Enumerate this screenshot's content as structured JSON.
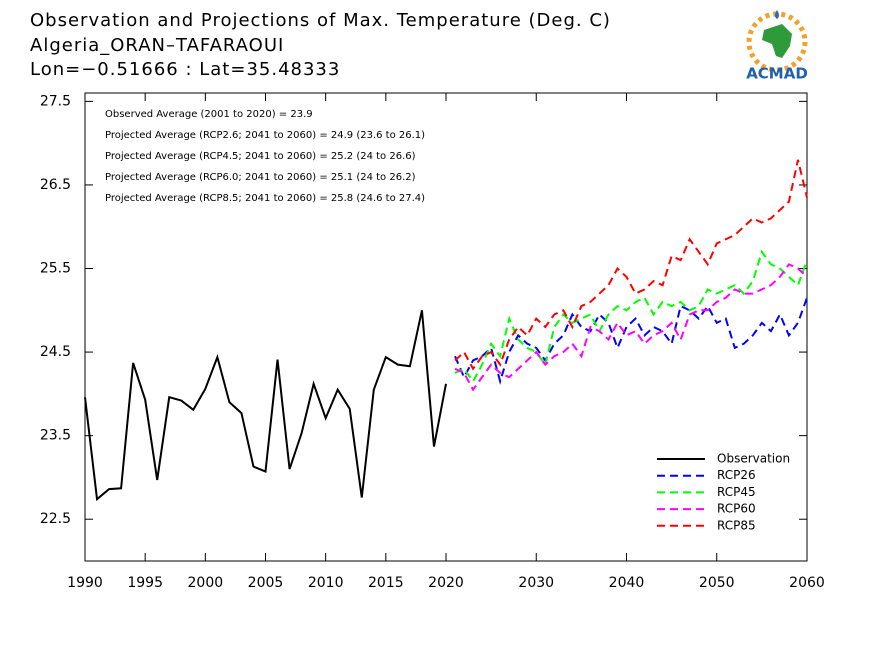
{
  "chart_data": {
    "type": "line",
    "title": "Observation and Projections of Max. Temperature (Deg. C)",
    "subtitle": "Algeria_ORAN–TAFARAOUI",
    "location": "Lon=−0.51666 : Lat=35.48333",
    "logo_text": "ACMAD",
    "annotations": [
      "Observed Average (2001 to 2020) = 23.9",
      "Projected Average (RCP2.6; 2041 to 2060) = 24.9 (23.6 to 26.1)",
      "Projected Average (RCP4.5; 2041 to 2060) = 25.2 (24 to 26.6)",
      "Projected Average (RCP6.0; 2041 to 2060) = 25.1 (24 to 26.2)",
      "Projected Average (RCP8.5; 2041 to 2060) = 25.8 (24.6 to 27.4)"
    ],
    "xlim": [
      1990,
      2020,
      2060
    ],
    "xticks": [
      1990,
      1995,
      2000,
      2005,
      2010,
      2015,
      2020,
      2030,
      2040,
      2050,
      2060
    ],
    "ylim": [
      22,
      27.6
    ],
    "yticks": [
      22.5,
      23.5,
      24.5,
      25.5,
      26.5,
      27.5
    ],
    "series": [
      {
        "name": "Observation",
        "color": "#000000",
        "style": "solid",
        "x": [
          1990,
          1991,
          1992,
          1993,
          1994,
          1995,
          1996,
          1997,
          1998,
          1999,
          2000,
          2001,
          2002,
          2003,
          2004,
          2005,
          2006,
          2007,
          2008,
          2009,
          2010,
          2011,
          2012,
          2013,
          2014,
          2015,
          2016,
          2017,
          2018,
          2019,
          2020
        ],
        "values": [
          23.96,
          22.74,
          22.86,
          22.87,
          24.37,
          23.93,
          22.97,
          23.96,
          23.92,
          23.81,
          24.06,
          24.44,
          23.9,
          23.77,
          23.13,
          23.07,
          24.41,
          23.1,
          23.53,
          24.12,
          23.71,
          24.05,
          23.82,
          22.76,
          24.05,
          24.44,
          24.35,
          24.33,
          25.0,
          23.37,
          24.12
        ]
      },
      {
        "name": "RCP26",
        "color": "#0000ff",
        "style": "dashed",
        "x": [
          2021,
          2022,
          2023,
          2024,
          2025,
          2026,
          2027,
          2028,
          2029,
          2030,
          2031,
          2032,
          2033,
          2034,
          2035,
          2036,
          2037,
          2038,
          2039,
          2040,
          2041,
          2042,
          2043,
          2044,
          2045,
          2046,
          2047,
          2048,
          2049,
          2050,
          2051,
          2052,
          2053,
          2054,
          2055,
          2056,
          2057,
          2058,
          2059,
          2060
        ],
        "values": [
          24.45,
          24.2,
          24.4,
          24.45,
          24.55,
          24.15,
          24.5,
          24.7,
          24.6,
          24.55,
          24.4,
          24.6,
          24.7,
          24.95,
          24.8,
          24.75,
          24.95,
          24.85,
          24.55,
          24.8,
          24.9,
          24.7,
          24.8,
          24.75,
          24.6,
          25.05,
          25.0,
          24.9,
          25.05,
          24.85,
          24.9,
          24.55,
          24.6,
          24.7,
          24.85,
          24.75,
          24.95,
          24.7,
          24.85,
          25.15
        ]
      },
      {
        "name": "RCP45",
        "color": "#00ff00",
        "style": "dashed",
        "x": [
          2021,
          2022,
          2023,
          2024,
          2025,
          2026,
          2027,
          2028,
          2029,
          2030,
          2031,
          2032,
          2033,
          2034,
          2035,
          2036,
          2037,
          2038,
          2039,
          2040,
          2041,
          2042,
          2043,
          2044,
          2045,
          2046,
          2047,
          2048,
          2049,
          2050,
          2051,
          2052,
          2053,
          2054,
          2055,
          2056,
          2057,
          2058,
          2059,
          2060
        ],
        "values": [
          24.25,
          24.3,
          24.15,
          24.35,
          24.6,
          24.45,
          24.9,
          24.65,
          24.55,
          24.5,
          24.35,
          24.8,
          24.95,
          24.85,
          24.9,
          24.95,
          24.75,
          24.95,
          25.05,
          25.0,
          25.1,
          25.15,
          24.95,
          25.1,
          25.05,
          25.1,
          25.0,
          25.05,
          25.25,
          25.2,
          25.25,
          25.3,
          25.2,
          25.35,
          25.7,
          25.55,
          25.5,
          25.4,
          25.3,
          25.6
        ]
      },
      {
        "name": "RCP60",
        "color": "#ff00ff",
        "style": "dashed",
        "x": [
          2021,
          2022,
          2023,
          2024,
          2025,
          2026,
          2027,
          2028,
          2029,
          2030,
          2031,
          2032,
          2033,
          2034,
          2035,
          2036,
          2037,
          2038,
          2039,
          2040,
          2041,
          2042,
          2043,
          2044,
          2045,
          2046,
          2047,
          2048,
          2049,
          2050,
          2051,
          2052,
          2053,
          2054,
          2055,
          2056,
          2057,
          2058,
          2059,
          2060
        ],
        "values": [
          24.3,
          24.25,
          24.05,
          24.2,
          24.35,
          24.25,
          24.2,
          24.3,
          24.4,
          24.5,
          24.35,
          24.45,
          24.5,
          24.6,
          24.45,
          24.8,
          24.75,
          24.65,
          24.85,
          24.7,
          24.75,
          24.6,
          24.7,
          24.75,
          24.85,
          24.65,
          24.95,
          25.0,
          25.0,
          25.1,
          25.15,
          25.25,
          25.2,
          25.2,
          25.25,
          25.3,
          25.4,
          25.55,
          25.5,
          25.4
        ]
      },
      {
        "name": "RCP85",
        "color": "#ff0000",
        "style": "dashed",
        "x": [
          2021,
          2022,
          2023,
          2024,
          2025,
          2026,
          2027,
          2028,
          2029,
          2030,
          2031,
          2032,
          2033,
          2034,
          2035,
          2036,
          2037,
          2038,
          2039,
          2040,
          2041,
          2042,
          2043,
          2044,
          2045,
          2046,
          2047,
          2048,
          2049,
          2050,
          2051,
          2052,
          2053,
          2054,
          2055,
          2056,
          2057,
          2058,
          2059,
          2060
        ],
        "values": [
          24.4,
          24.5,
          24.3,
          24.45,
          24.5,
          24.35,
          24.65,
          24.8,
          24.7,
          24.9,
          24.8,
          24.95,
          25.0,
          24.8,
          25.05,
          25.1,
          25.2,
          25.3,
          25.5,
          25.4,
          25.2,
          25.25,
          25.35,
          25.3,
          25.65,
          25.6,
          25.85,
          25.7,
          25.55,
          25.8,
          25.85,
          25.9,
          26.0,
          26.1,
          26.05,
          26.1,
          26.2,
          26.3,
          26.8,
          26.35
        ]
      }
    ],
    "legend": "lower right"
  }
}
